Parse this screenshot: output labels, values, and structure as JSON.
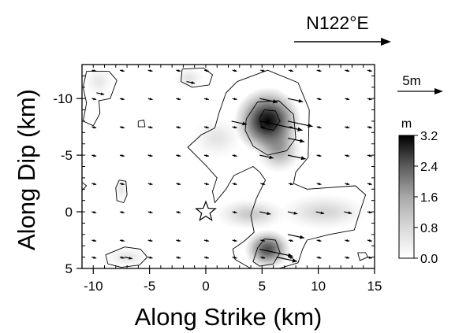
{
  "chart_data": {
    "type": "heatmap",
    "title": "",
    "xlabel": "Along Strike (km)",
    "ylabel": "Along Dip (km)",
    "xlim": [
      -11,
      15
    ],
    "ylim": [
      5,
      -13
    ],
    "y_axis_inverted": true,
    "xticks": [
      -10,
      -5,
      0,
      5,
      10,
      15
    ],
    "xtick_labels": [
      "-10",
      "-5",
      "0",
      "5",
      "10",
      "15"
    ],
    "yticks": [
      -10,
      -5,
      0,
      5
    ],
    "ytick_labels": [
      "-10",
      "-5",
      "0",
      "5"
    ],
    "value_unit": "m",
    "colorbar": {
      "unit_label": "m",
      "ticks": [
        0.0,
        0.8,
        1.6,
        2.4,
        3.2
      ],
      "tick_labels": [
        "0.0",
        "0.8",
        "1.6",
        "2.4",
        "3.2"
      ],
      "colors": [
        "#ffffff",
        "#000000"
      ]
    },
    "hypocenter": {
      "x": 0,
      "y": 0,
      "marker": "star"
    },
    "direction_label": "N122°E",
    "scale_arrow_label": "5m",
    "slip_patches": [
      {
        "x": 5.5,
        "y": -8.0,
        "peak_slip": 3.2,
        "sx": 2.6,
        "sy": 2.6
      },
      {
        "x": 6.5,
        "y": -5.5,
        "peak_slip": 1.2,
        "sx": 1.8,
        "sy": 1.8
      },
      {
        "x": 5.5,
        "y": 3.3,
        "peak_slip": 2.3,
        "sx": 1.8,
        "sy": 1.5
      },
      {
        "x": 4.0,
        "y": 0.2,
        "peak_slip": 0.7,
        "sx": 2.8,
        "sy": 1.2
      },
      {
        "x": 10.5,
        "y": 0.0,
        "peak_slip": 0.55,
        "sx": 3.5,
        "sy": 1.4
      },
      {
        "x": 1.0,
        "y": -6.5,
        "peak_slip": 0.35,
        "sx": 2.0,
        "sy": 1.6
      },
      {
        "x": -9.5,
        "y": -11.5,
        "peak_slip": 0.3,
        "sx": 1.2,
        "sy": 1.2
      },
      {
        "x": -1.5,
        "y": -11.8,
        "peak_slip": 0.35,
        "sx": 1.2,
        "sy": 0.9
      },
      {
        "x": -7.5,
        "y": -2.0,
        "peak_slip": 0.3,
        "sx": 0.6,
        "sy": 1.0
      },
      {
        "x": -7.0,
        "y": 4.0,
        "peak_slip": 0.35,
        "sx": 1.8,
        "sy": 0.8
      }
    ],
    "contours": [
      {
        "level": 0.8,
        "path": [
          [
            2.8,
            -11.5
          ],
          [
            5.5,
            -12.5
          ],
          [
            8.2,
            -11.4
          ],
          [
            9.2,
            -9.0
          ],
          [
            9.1,
            -4.8
          ],
          [
            8.0,
            -3.5
          ],
          [
            7.8,
            -2.5
          ],
          [
            9.0,
            -2.0
          ],
          [
            13.3,
            -2.3
          ],
          [
            14.2,
            -1.5
          ],
          [
            13.6,
            0.3
          ],
          [
            13.2,
            1.6
          ],
          [
            11.0,
            2.0
          ],
          [
            9.0,
            2.5
          ],
          [
            8.6,
            3.3
          ],
          [
            8.2,
            4.5
          ],
          [
            6.5,
            5.0
          ],
          [
            4.0,
            5.0
          ],
          [
            2.6,
            4.2
          ],
          [
            2.4,
            3.3
          ],
          [
            3.4,
            2.6
          ],
          [
            4.3,
            1.8
          ],
          [
            4.0,
            0.3
          ],
          [
            4.5,
            -1.2
          ],
          [
            5.3,
            -2.8
          ],
          [
            4.8,
            -3.5
          ],
          [
            4.2,
            -4.0
          ],
          [
            2.5,
            -3.2
          ],
          [
            1.8,
            -2.0
          ],
          [
            0.8,
            -0.8
          ],
          [
            0.6,
            -1.8
          ],
          [
            1.0,
            -3.0
          ],
          [
            0.1,
            -4.0
          ],
          [
            -1.6,
            -5.7
          ],
          [
            -0.4,
            -6.8
          ],
          [
            0.8,
            -7.4
          ],
          [
            1.2,
            -8.8
          ],
          [
            1.8,
            -10.5
          ],
          [
            2.8,
            -11.5
          ]
        ]
      },
      {
        "level": 1.6,
        "path": [
          [
            3.6,
            -8.2
          ],
          [
            4.6,
            -9.7
          ],
          [
            6.5,
            -9.8
          ],
          [
            7.8,
            -8.6
          ],
          [
            8.0,
            -6.5
          ],
          [
            7.2,
            -5.4
          ],
          [
            5.5,
            -5.0
          ],
          [
            4.2,
            -5.8
          ],
          [
            3.5,
            -7.2
          ],
          [
            3.6,
            -8.2
          ]
        ]
      },
      {
        "level": 1.6,
        "path": [
          [
            4.2,
            4.4
          ],
          [
            4.6,
            3.2
          ],
          [
            5.2,
            2.4
          ],
          [
            6.2,
            2.5
          ],
          [
            6.6,
            3.6
          ],
          [
            6.0,
            4.6
          ],
          [
            4.8,
            4.8
          ],
          [
            4.2,
            4.4
          ]
        ]
      },
      {
        "level": 2.4,
        "path": [
          [
            4.8,
            -8.3
          ],
          [
            5.2,
            -9.0
          ],
          [
            6.2,
            -8.9
          ],
          [
            6.6,
            -8.0
          ],
          [
            6.0,
            -7.2
          ],
          [
            5.0,
            -7.4
          ],
          [
            4.8,
            -8.3
          ]
        ]
      },
      {
        "level": 0.8,
        "path": [
          [
            -10.6,
            -12.4
          ],
          [
            -8.6,
            -12.4
          ],
          [
            -7.9,
            -11.6
          ],
          [
            -8.5,
            -10.0
          ],
          [
            -9.5,
            -9.8
          ],
          [
            -9.4,
            -8.7
          ],
          [
            -10.0,
            -7.6
          ],
          [
            -10.9,
            -8.0
          ],
          [
            -10.6,
            -9.6
          ],
          [
            -10.9,
            -11.0
          ],
          [
            -10.6,
            -12.4
          ]
        ]
      },
      {
        "level": 0.8,
        "path": [
          [
            -2.1,
            -12.6
          ],
          [
            -0.2,
            -12.7
          ],
          [
            0.6,
            -12.1
          ],
          [
            0.3,
            -11.2
          ],
          [
            -1.2,
            -11.0
          ],
          [
            -2.2,
            -11.5
          ],
          [
            -2.1,
            -12.6
          ]
        ]
      },
      {
        "level": 0.8,
        "path": [
          [
            -7.7,
            -2.8
          ],
          [
            -7.1,
            -2.7
          ],
          [
            -7.0,
            -1.5
          ],
          [
            -7.3,
            -0.8
          ],
          [
            -7.9,
            -1.0
          ],
          [
            -8.0,
            -2.1
          ],
          [
            -7.7,
            -2.8
          ]
        ]
      },
      {
        "level": 0.8,
        "path": [
          [
            -8.9,
            3.8
          ],
          [
            -7.2,
            3.1
          ],
          [
            -5.8,
            3.3
          ],
          [
            -5.2,
            4.0
          ],
          [
            -5.9,
            4.7
          ],
          [
            -7.5,
            4.9
          ],
          [
            -8.7,
            4.6
          ],
          [
            -8.9,
            3.8
          ]
        ]
      },
      {
        "level": 0.8,
        "path": [
          [
            -6.0,
            -8.0
          ],
          [
            -5.5,
            -8.1
          ],
          [
            -5.4,
            -7.5
          ],
          [
            -6.0,
            -7.5
          ],
          [
            -6.0,
            -8.0
          ]
        ]
      },
      {
        "level": 0.8,
        "path": [
          [
            13.5,
            3.6
          ],
          [
            14.2,
            3.6
          ],
          [
            14.4,
            4.0
          ],
          [
            13.7,
            4.3
          ],
          [
            13.5,
            3.6
          ]
        ]
      },
      {
        "level": 0.8,
        "path": [
          [
            -11.0,
            -2.6
          ],
          [
            -10.6,
            -2.3
          ],
          [
            -11.0,
            -1.9
          ]
        ]
      }
    ],
    "slip_vector_grid": {
      "x": [
        -10,
        -7.5,
        -5,
        -2.5,
        0,
        2.5,
        5,
        7.5,
        10,
        12.5,
        14.5
      ],
      "y": [
        -12.5,
        -10,
        -7.5,
        -5,
        -2.5,
        0,
        2.5,
        4
      ]
    },
    "slip_vectors": [
      {
        "x": 5.0,
        "y": -8.0,
        "slip": 3.1
      },
      {
        "x": 7.5,
        "y": -8.0,
        "slip": 1.8
      },
      {
        "x": 2.5,
        "y": -8.0,
        "slip": 1.1
      },
      {
        "x": 5.0,
        "y": -10.0,
        "slip": 1.3
      },
      {
        "x": 7.5,
        "y": -10.0,
        "slip": 1.1
      },
      {
        "x": 5.0,
        "y": -5.0,
        "slip": 1.0
      },
      {
        "x": 7.5,
        "y": -5.0,
        "slip": 1.3
      },
      {
        "x": 7.5,
        "y": -6.5,
        "slip": 1.2
      },
      {
        "x": 5.0,
        "y": 3.3,
        "slip": 2.4
      },
      {
        "x": 6.5,
        "y": 4.0,
        "slip": 1.5
      },
      {
        "x": 7.5,
        "y": 2.0,
        "slip": 1.2
      },
      {
        "x": 5.0,
        "y": 0.0,
        "slip": 0.8
      },
      {
        "x": 7.5,
        "y": 0.0,
        "slip": 0.7
      },
      {
        "x": 10.0,
        "y": 0.0,
        "slip": 0.6
      },
      {
        "x": 12.5,
        "y": 0.0,
        "slip": 0.5
      },
      {
        "x": -9.5,
        "y": -10.5,
        "slip": 0.5
      },
      {
        "x": -1.5,
        "y": -11.5,
        "slip": 0.6
      },
      {
        "x": -7.0,
        "y": 4.0,
        "slip": 0.5
      }
    ]
  }
}
